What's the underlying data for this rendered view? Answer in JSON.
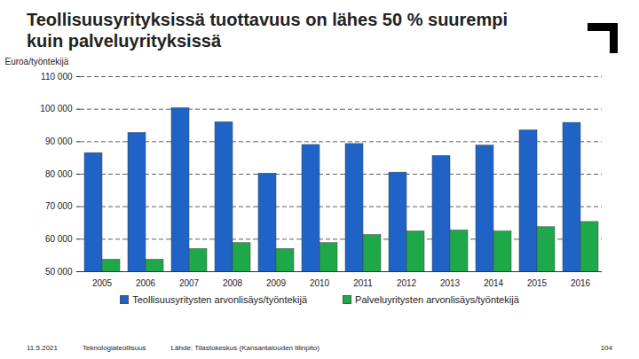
{
  "chart_data": {
    "type": "bar",
    "title": "Teollisuusyrityksissä tuottavuus on lähes 50 % suurempi kuin palveluyrityksissä",
    "y_label": "Euroa/työntekijä",
    "categories": [
      "2005",
      "2006",
      "2007",
      "2008",
      "2009",
      "2010",
      "2011",
      "2012",
      "2013",
      "2014",
      "2015",
      "2016"
    ],
    "series": [
      {
        "name": "Teollisuusyritysten arvonlisäys/työntekijä",
        "color": "#1f63c6",
        "values": [
          86500,
          92700,
          100300,
          96000,
          80200,
          89000,
          89300,
          80500,
          85600,
          88800,
          93500,
          95800
        ]
      },
      {
        "name": "Palveluyritysten arvonlisäys/työntekijä",
        "color": "#1fa84a",
        "values": [
          53700,
          53700,
          57000,
          58800,
          57000,
          58800,
          61300,
          62400,
          62700,
          62400,
          63700,
          65300
        ]
      }
    ],
    "ylim": [
      50000,
      110000
    ],
    "yticks": [
      {
        "value": 50000,
        "label": "50 000"
      },
      {
        "value": 60000,
        "label": "60 000"
      },
      {
        "value": 70000,
        "label": "70 000"
      },
      {
        "value": 80000,
        "label": "80 000"
      },
      {
        "value": 90000,
        "label": "90 000"
      },
      {
        "value": 100000,
        "label": "100 000"
      },
      {
        "value": 110000,
        "label": "110 000"
      }
    ],
    "grid": true,
    "legend": "bottom"
  },
  "footer": {
    "date": "11.5.2021",
    "organization": "Teknologiateollisuus",
    "source": "Lähde: Tilastokeskus (Kansantalouden tilinpito)",
    "page": "104"
  }
}
